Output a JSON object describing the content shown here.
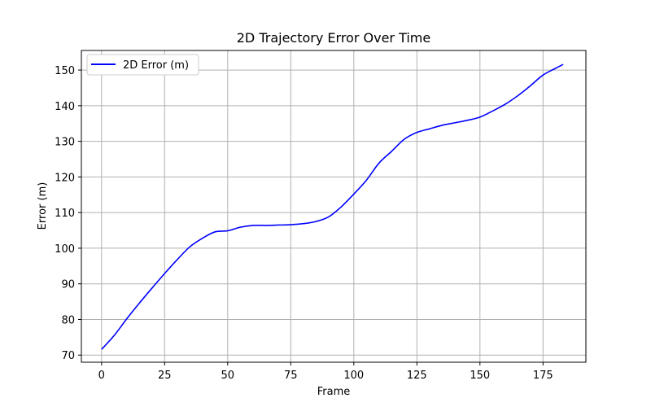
{
  "chart_data": {
    "type": "line",
    "title": "2D Trajectory Error Over Time",
    "xlabel": "Frame",
    "ylabel": "Error (m)",
    "xlim": [
      -8,
      192
    ],
    "ylim": [
      68,
      155.5
    ],
    "xticks": [
      0,
      25,
      50,
      75,
      100,
      125,
      150,
      175
    ],
    "yticks": [
      70,
      80,
      90,
      100,
      110,
      120,
      130,
      140,
      150
    ],
    "grid": true,
    "legend_position": "top-left",
    "series": [
      {
        "name": "2D Error (m)",
        "color": "#0000ff",
        "x": [
          0,
          5,
          10,
          15,
          20,
          25,
          30,
          35,
          40,
          45,
          50,
          55,
          60,
          65,
          70,
          75,
          80,
          85,
          90,
          95,
          100,
          105,
          110,
          115,
          120,
          125,
          130,
          135,
          140,
          145,
          150,
          155,
          160,
          165,
          170,
          175,
          180,
          183
        ],
        "y": [
          71.6,
          75.5,
          80.2,
          84.6,
          88.8,
          92.9,
          96.8,
          100.4,
          102.8,
          104.6,
          104.9,
          105.9,
          106.4,
          106.4,
          106.5,
          106.6,
          106.9,
          107.5,
          108.8,
          111.6,
          115.2,
          119.1,
          123.9,
          127.2,
          130.6,
          132.5,
          133.5,
          134.5,
          135.2,
          135.9,
          136.8,
          138.5,
          140.4,
          142.8,
          145.6,
          148.6,
          150.5,
          151.6
        ]
      }
    ]
  }
}
